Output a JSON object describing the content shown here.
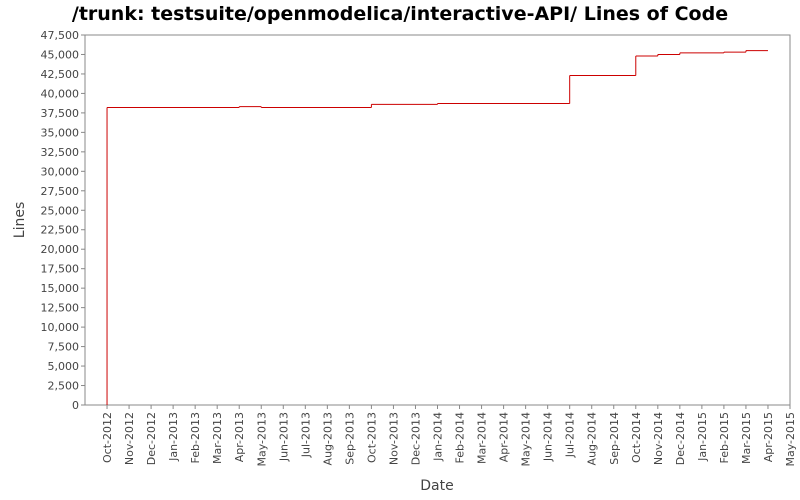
{
  "chart_data": {
    "type": "step",
    "title": "/trunk: testsuite/openmodelica/interactive-API/ Lines of Code",
    "x_label": "Date",
    "y_label": "Lines",
    "series": [
      {
        "name": "Lines",
        "color": "#cc0000",
        "x": [
          "2012-10",
          "2012-10",
          "2013-04",
          "2013-05",
          "2013-10",
          "2014-01",
          "2014-07",
          "2014-10",
          "2014-11",
          "2014-12",
          "2015-02",
          "2015-03",
          "2015-04"
        ],
        "values": [
          0,
          38200,
          38300,
          38200,
          38600,
          38700,
          42300,
          44800,
          45000,
          45200,
          45300,
          45500,
          45500
        ]
      }
    ],
    "xlim": [
      "2012-09",
      "2015-05"
    ],
    "xticks": [
      {
        "value": "2012-10",
        "label": "Oct-2012"
      },
      {
        "value": "2012-11",
        "label": "Nov-2012"
      },
      {
        "value": "2012-12",
        "label": "Dec-2012"
      },
      {
        "value": "2013-01",
        "label": "Jan-2013"
      },
      {
        "value": "2013-02",
        "label": "Feb-2013"
      },
      {
        "value": "2013-03",
        "label": "Mar-2013"
      },
      {
        "value": "2013-04",
        "label": "Apr-2013"
      },
      {
        "value": "2013-05",
        "label": "May-2013"
      },
      {
        "value": "2013-06",
        "label": "Jun-2013"
      },
      {
        "value": "2013-07",
        "label": "Jul-2013"
      },
      {
        "value": "2013-08",
        "label": "Aug-2013"
      },
      {
        "value": "2013-09",
        "label": "Sep-2013"
      },
      {
        "value": "2013-10",
        "label": "Oct-2013"
      },
      {
        "value": "2013-11",
        "label": "Nov-2013"
      },
      {
        "value": "2013-12",
        "label": "Dec-2013"
      },
      {
        "value": "2014-01",
        "label": "Jan-2014"
      },
      {
        "value": "2014-02",
        "label": "Feb-2014"
      },
      {
        "value": "2014-03",
        "label": "Mar-2014"
      },
      {
        "value": "2014-04",
        "label": "Apr-2014"
      },
      {
        "value": "2014-05",
        "label": "May-2014"
      },
      {
        "value": "2014-06",
        "label": "Jun-2014"
      },
      {
        "value": "2014-07",
        "label": "Jul-2014"
      },
      {
        "value": "2014-08",
        "label": "Aug-2014"
      },
      {
        "value": "2014-09",
        "label": "Sep-2014"
      },
      {
        "value": "2014-10",
        "label": "Oct-2014"
      },
      {
        "value": "2014-11",
        "label": "Nov-2014"
      },
      {
        "value": "2014-12",
        "label": "Dec-2014"
      },
      {
        "value": "2015-01",
        "label": "Jan-2015"
      },
      {
        "value": "2015-02",
        "label": "Feb-2015"
      },
      {
        "value": "2015-03",
        "label": "Mar-2015"
      },
      {
        "value": "2015-04",
        "label": "Apr-2015"
      },
      {
        "value": "2015-05",
        "label": "May-2015"
      }
    ],
    "ylim": [
      0,
      47500
    ],
    "yticks": [
      0,
      {
        "value": 2500,
        "label": "2,500"
      },
      {
        "value": 5000,
        "label": "5,000"
      },
      {
        "value": 7500,
        "label": "7,500"
      },
      {
        "value": 10000,
        "label": "10,000"
      },
      {
        "value": 12500,
        "label": "12,500"
      },
      {
        "value": 15000,
        "label": "15,000"
      },
      {
        "value": 17500,
        "label": "17,500"
      },
      {
        "value": 20000,
        "label": "20,000"
      },
      {
        "value": 22500,
        "label": "22,500"
      },
      {
        "value": 25000,
        "label": "25,000"
      },
      {
        "value": 27500,
        "label": "27,500"
      },
      {
        "value": 30000,
        "label": "30,000"
      },
      {
        "value": 32500,
        "label": "32,500"
      },
      {
        "value": 35000,
        "label": "35,000"
      },
      {
        "value": 37500,
        "label": "37,500"
      },
      {
        "value": 40000,
        "label": "40,000"
      },
      {
        "value": 42500,
        "label": "42,500"
      },
      {
        "value": 45000,
        "label": "45,000"
      },
      {
        "value": 47500,
        "label": "47,500"
      }
    ]
  }
}
